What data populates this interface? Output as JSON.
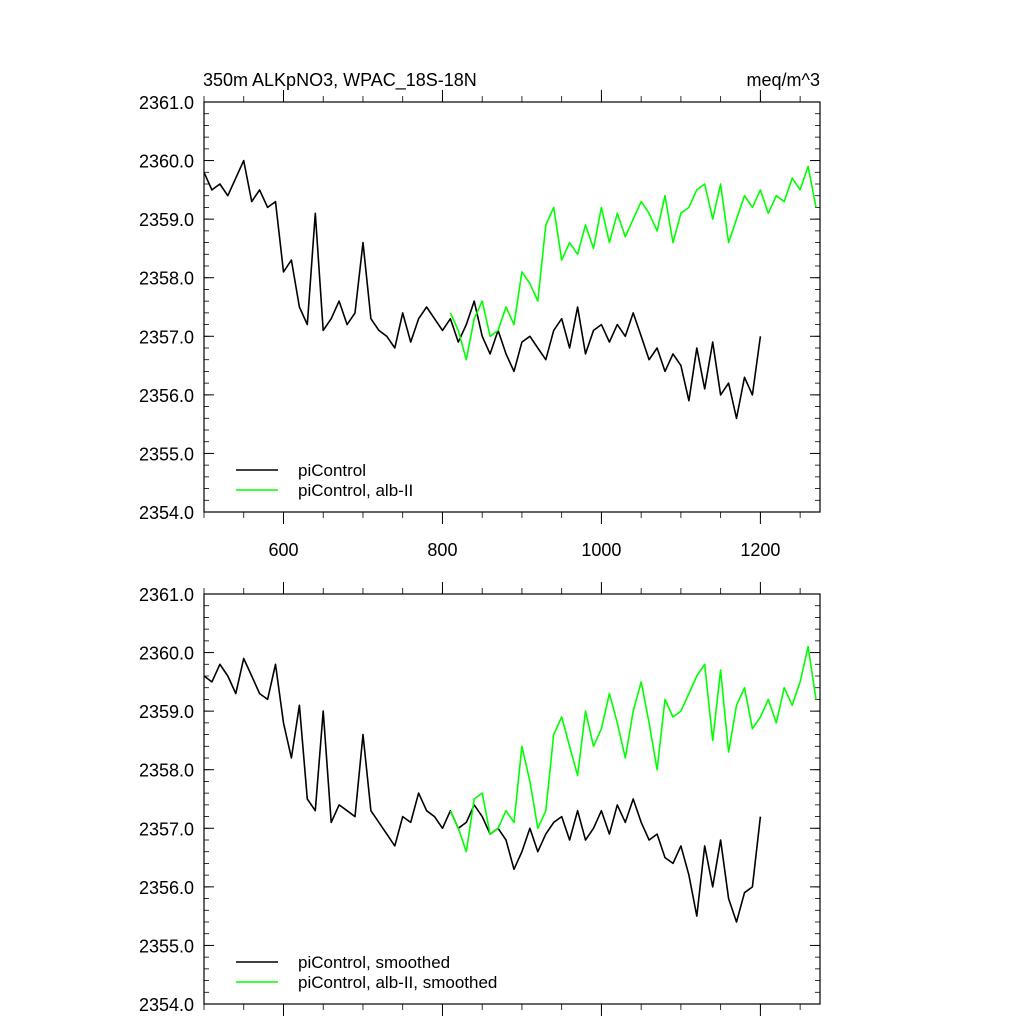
{
  "chart_data": [
    {
      "type": "line",
      "title": "350m ALKpNO3, WPAC_18S-18N",
      "units": "meq/m^3",
      "xlim": [
        500,
        1275
      ],
      "ylim": [
        2354.0,
        2361.0
      ],
      "x_major_ticks": [
        600,
        800,
        1000,
        1200
      ],
      "x_tick_labels": [
        "600",
        "800",
        "1000",
        "1200"
      ],
      "y_major_ticks": [
        2354.0,
        2355.0,
        2356.0,
        2357.0,
        2358.0,
        2359.0,
        2360.0,
        2361.0
      ],
      "y_tick_labels": [
        "2354.0",
        "2355.0",
        "2356.0",
        "2357.0",
        "2358.0",
        "2359.0",
        "2360.0",
        "2361.0"
      ],
      "grid": false,
      "legend_position": "bottom-left",
      "series": [
        {
          "name": "piControl",
          "color": "#000000",
          "x": [
            500,
            510,
            520,
            530,
            540,
            550,
            560,
            570,
            580,
            590,
            600,
            610,
            620,
            630,
            640,
            650,
            660,
            670,
            680,
            690,
            700,
            710,
            720,
            730,
            740,
            750,
            760,
            770,
            780,
            790,
            800,
            810,
            820,
            830,
            840,
            850,
            860,
            870,
            880,
            890,
            900,
            910,
            920,
            930,
            940,
            950,
            960,
            970,
            980,
            990,
            1000,
            1010,
            1020,
            1030,
            1040,
            1050,
            1060,
            1070,
            1080,
            1090,
            1100,
            1110,
            1120,
            1130,
            1140,
            1150,
            1160,
            1170,
            1180,
            1190,
            1200
          ],
          "y": [
            2359.8,
            2359.5,
            2359.6,
            2359.4,
            2359.7,
            2360.0,
            2359.3,
            2359.5,
            2359.2,
            2359.3,
            2358.1,
            2358.3,
            2357.5,
            2357.2,
            2359.1,
            2357.1,
            2357.3,
            2357.6,
            2357.2,
            2357.4,
            2358.6,
            2357.3,
            2357.1,
            2357.0,
            2356.8,
            2357.4,
            2356.9,
            2357.3,
            2357.5,
            2357.3,
            2357.1,
            2357.3,
            2356.9,
            2357.2,
            2357.6,
            2357.0,
            2356.7,
            2357.1,
            2356.7,
            2356.4,
            2356.9,
            2357.0,
            2356.8,
            2356.6,
            2357.1,
            2357.3,
            2356.8,
            2357.5,
            2356.7,
            2357.1,
            2357.2,
            2356.9,
            2357.2,
            2357.0,
            2357.4,
            2357.0,
            2356.6,
            2356.8,
            2356.4,
            2356.7,
            2356.5,
            2355.9,
            2356.8,
            2356.1,
            2356.9,
            2356.0,
            2356.2,
            2355.6,
            2356.3,
            2356.0,
            2357.0
          ]
        },
        {
          "name": "piControl, alb-II",
          "color": "#00ff00",
          "x": [
            810,
            820,
            830,
            840,
            850,
            860,
            870,
            880,
            890,
            900,
            910,
            920,
            930,
            940,
            950,
            960,
            970,
            980,
            990,
            1000,
            1010,
            1020,
            1030,
            1040,
            1050,
            1060,
            1070,
            1080,
            1090,
            1100,
            1110,
            1120,
            1130,
            1140,
            1150,
            1160,
            1170,
            1180,
            1190,
            1200,
            1210,
            1220,
            1230,
            1240,
            1250,
            1260,
            1270
          ],
          "y": [
            2357.4,
            2357.1,
            2356.6,
            2357.3,
            2357.6,
            2357.0,
            2357.1,
            2357.5,
            2357.2,
            2358.1,
            2357.9,
            2357.6,
            2358.9,
            2359.2,
            2358.3,
            2358.6,
            2358.4,
            2358.9,
            2358.5,
            2359.2,
            2358.6,
            2359.1,
            2358.7,
            2359.0,
            2359.3,
            2359.1,
            2358.8,
            2359.4,
            2358.6,
            2359.1,
            2359.2,
            2359.5,
            2359.6,
            2359.0,
            2359.6,
            2358.6,
            2359.0,
            2359.4,
            2359.2,
            2359.5,
            2359.1,
            2359.4,
            2359.3,
            2359.7,
            2359.5,
            2359.9,
            2359.2
          ]
        }
      ]
    },
    {
      "type": "line",
      "title": "",
      "units": "",
      "xlim": [
        500,
        1275
      ],
      "ylim": [
        2354.0,
        2361.0
      ],
      "x_major_ticks": [
        600,
        800,
        1000,
        1200
      ],
      "x_tick_labels": [],
      "y_major_ticks": [
        2354.0,
        2355.0,
        2356.0,
        2357.0,
        2358.0,
        2359.0,
        2360.0,
        2361.0
      ],
      "y_tick_labels": [
        "2354.0",
        "2355.0",
        "2356.0",
        "2357.0",
        "2358.0",
        "2359.0",
        "2360.0",
        "2361.0"
      ],
      "grid": false,
      "legend_position": "bottom-left",
      "series": [
        {
          "name": "piControl, smoothed",
          "color": "#000000",
          "x": [
            500,
            510,
            520,
            530,
            540,
            550,
            560,
            570,
            580,
            590,
            600,
            610,
            620,
            630,
            640,
            650,
            660,
            670,
            680,
            690,
            700,
            710,
            720,
            730,
            740,
            750,
            760,
            770,
            780,
            790,
            800,
            810,
            820,
            830,
            840,
            850,
            860,
            870,
            880,
            890,
            900,
            910,
            920,
            930,
            940,
            950,
            960,
            970,
            980,
            990,
            1000,
            1010,
            1020,
            1030,
            1040,
            1050,
            1060,
            1070,
            1080,
            1090,
            1100,
            1110,
            1120,
            1130,
            1140,
            1150,
            1160,
            1170,
            1180,
            1190,
            1200
          ],
          "y": [
            2359.6,
            2359.5,
            2359.8,
            2359.6,
            2359.3,
            2359.9,
            2359.6,
            2359.3,
            2359.2,
            2359.8,
            2358.8,
            2358.2,
            2359.1,
            2357.5,
            2357.3,
            2359.0,
            2357.1,
            2357.4,
            2357.3,
            2357.2,
            2358.6,
            2357.3,
            2357.1,
            2356.9,
            2356.7,
            2357.2,
            2357.1,
            2357.6,
            2357.3,
            2357.2,
            2357.0,
            2357.3,
            2357.0,
            2357.1,
            2357.4,
            2357.2,
            2356.9,
            2357.0,
            2356.8,
            2356.3,
            2356.6,
            2357.0,
            2356.6,
            2356.9,
            2357.1,
            2357.2,
            2356.8,
            2357.3,
            2356.8,
            2357.0,
            2357.3,
            2356.9,
            2357.4,
            2357.1,
            2357.5,
            2357.1,
            2356.8,
            2356.9,
            2356.5,
            2356.4,
            2356.7,
            2356.2,
            2355.5,
            2356.7,
            2356.0,
            2356.8,
            2355.8,
            2355.4,
            2355.9,
            2356.0,
            2357.2
          ]
        },
        {
          "name": "piControl, alb-II, smoothed",
          "color": "#00ff00",
          "x": [
            810,
            820,
            830,
            840,
            850,
            860,
            870,
            880,
            890,
            900,
            910,
            920,
            930,
            940,
            950,
            960,
            970,
            980,
            990,
            1000,
            1010,
            1020,
            1030,
            1040,
            1050,
            1060,
            1070,
            1080,
            1090,
            1100,
            1110,
            1120,
            1130,
            1140,
            1150,
            1160,
            1170,
            1180,
            1190,
            1200,
            1210,
            1220,
            1230,
            1240,
            1250,
            1260,
            1270
          ],
          "y": [
            2357.3,
            2357.0,
            2356.6,
            2357.5,
            2357.6,
            2356.9,
            2357.0,
            2357.3,
            2357.1,
            2358.4,
            2357.8,
            2357.0,
            2357.3,
            2358.6,
            2358.9,
            2358.4,
            2357.9,
            2359.0,
            2358.4,
            2358.7,
            2359.3,
            2358.8,
            2358.2,
            2359.0,
            2359.5,
            2358.8,
            2358.0,
            2359.2,
            2358.9,
            2359.0,
            2359.3,
            2359.6,
            2359.8,
            2358.5,
            2359.7,
            2358.3,
            2359.1,
            2359.4,
            2358.7,
            2358.9,
            2359.2,
            2358.8,
            2359.4,
            2359.1,
            2359.5,
            2360.1,
            2359.2
          ]
        }
      ]
    }
  ]
}
